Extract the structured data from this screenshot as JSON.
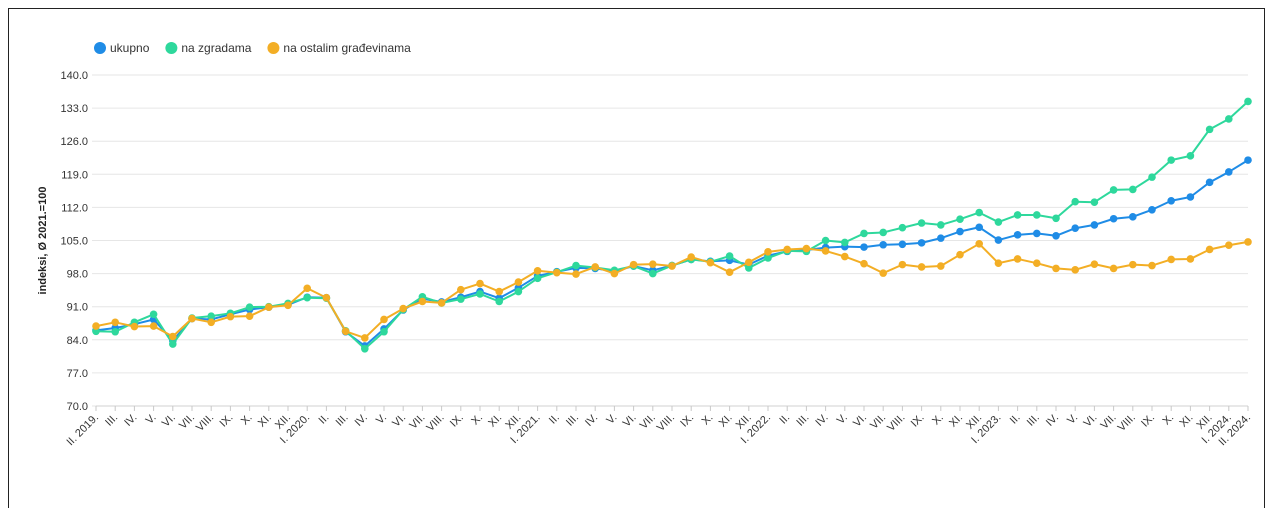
{
  "chart_data": {
    "type": "line",
    "ylabel": "indeksi, Ø 2021.=100",
    "ylim": [
      70,
      140
    ],
    "yticks": [
      "70.0",
      "77.0",
      "84.0",
      "91.0",
      "98.0",
      "105.0",
      "112.0",
      "119.0",
      "126.0",
      "133.0",
      "140.0"
    ],
    "categories": [
      "II. 2019.",
      "III.",
      "IV.",
      "V.",
      "VI.",
      "VII.",
      "VIII.",
      "IX.",
      "X.",
      "XI.",
      "XII.",
      "I. 2020.",
      "II.",
      "III.",
      "IV.",
      "V.",
      "VI.",
      "VII.",
      "VIII.",
      "IX.",
      "X.",
      "XI.",
      "XII.",
      "I. 2021.",
      "II.",
      "III.",
      "IV.",
      "V.",
      "VI.",
      "VII.",
      "VIII.",
      "IX.",
      "X.",
      "XI.",
      "XII.",
      "I. 2022.",
      "II.",
      "III.",
      "IV.",
      "V.",
      "VI.",
      "VII.",
      "VIII.",
      "IX.",
      "X.",
      "XI.",
      "XII.",
      "I. 2023.",
      "II.",
      "III.",
      "IV.",
      "V.",
      "VI.",
      "VII.",
      "VIII.",
      "IX.",
      "X.",
      "XI.",
      "XII.",
      "I. 2024.",
      "II. 2024."
    ],
    "legend_position": "top-left",
    "grid": true,
    "series": [
      {
        "name": "ukupno",
        "color": "#1f8ce6",
        "values": [
          86.0,
          86.5,
          87.3,
          88.3,
          83.8,
          88.5,
          88.3,
          89.4,
          90.4,
          90.9,
          91.4,
          93.0,
          92.9,
          85.7,
          82.7,
          86.3,
          90.3,
          92.7,
          92.0,
          93.0,
          94.2,
          92.8,
          95.0,
          97.5,
          98.4,
          99.2,
          99.1,
          98.5,
          99.6,
          98.7,
          99.7,
          101.0,
          100.6,
          100.8,
          99.9,
          101.8,
          102.7,
          103.0,
          103.5,
          103.7,
          103.6,
          104.1,
          104.2,
          104.5,
          105.5,
          106.9,
          107.8,
          105.1,
          106.2,
          106.5,
          106.0,
          107.6,
          108.3,
          109.6,
          110.0,
          111.5,
          113.4,
          114.2,
          117.3,
          119.5,
          122.0
        ]
      },
      {
        "name": "na zgradama",
        "color": "#2ed89c",
        "values": [
          85.8,
          85.7,
          87.7,
          89.4,
          83.1,
          88.6,
          89.0,
          89.6,
          90.9,
          91.0,
          91.7,
          92.9,
          92.8,
          85.9,
          82.1,
          85.7,
          90.4,
          93.1,
          91.8,
          92.6,
          93.7,
          92.1,
          94.2,
          97.0,
          98.3,
          99.7,
          99.3,
          98.7,
          99.6,
          98.0,
          99.7,
          101.0,
          100.5,
          101.7,
          99.2,
          101.3,
          102.8,
          102.7,
          105.0,
          104.6,
          106.5,
          106.7,
          107.7,
          108.7,
          108.3,
          109.5,
          110.9,
          108.9,
          110.4,
          110.4,
          109.7,
          113.2,
          113.1,
          115.7,
          115.8,
          118.4,
          122.0,
          122.9,
          128.5,
          130.7,
          134.4
        ]
      },
      {
        "name": "na ostalim građevinama",
        "color": "#f3ae25",
        "values": [
          86.9,
          87.7,
          86.8,
          86.9,
          84.7,
          88.5,
          87.7,
          88.9,
          89.0,
          90.9,
          91.3,
          94.9,
          92.9,
          85.8,
          84.4,
          88.3,
          90.6,
          92.1,
          91.8,
          94.6,
          95.9,
          94.2,
          96.2,
          98.6,
          98.2,
          97.9,
          99.4,
          98.0,
          99.9,
          100.0,
          99.6,
          101.5,
          100.3,
          98.3,
          100.4,
          102.6,
          103.1,
          103.3,
          102.8,
          101.6,
          100.1,
          98.1,
          99.9,
          99.4,
          99.6,
          102.0,
          104.3,
          100.2,
          101.1,
          100.2,
          99.1,
          98.8,
          100.0,
          99.1,
          99.9,
          99.7,
          101.0,
          101.1,
          103.1,
          104.0,
          104.7
        ]
      }
    ]
  }
}
